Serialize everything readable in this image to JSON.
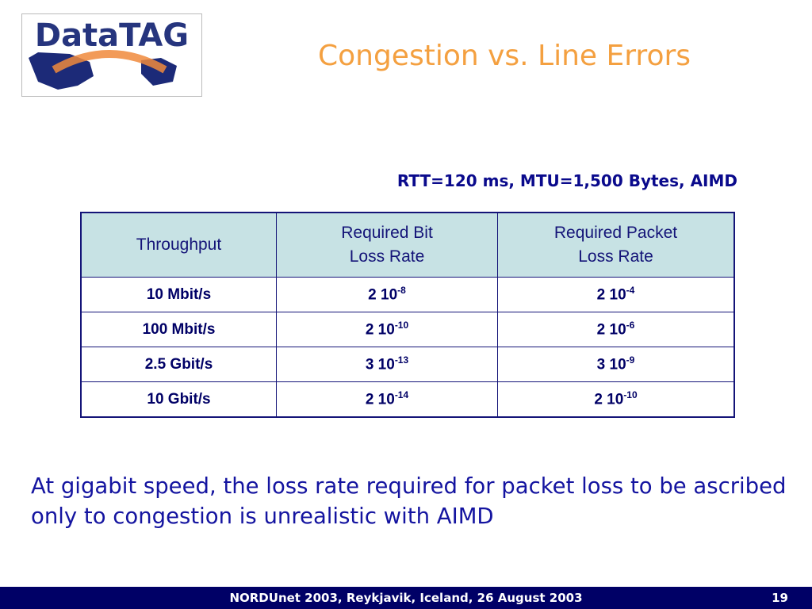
{
  "logo": {
    "text": "DataTAG"
  },
  "header": {
    "title": "Congestion vs. Line Errors"
  },
  "subtitle": "RTT=120 ms, MTU=1,500 Bytes, AIMD",
  "table": {
    "columns": [
      [
        "Throughput"
      ],
      [
        "Required Bit",
        "Loss Rate"
      ],
      [
        "Required Packet",
        "Loss Rate"
      ]
    ],
    "rows": [
      [
        "10 Mbit/s",
        {
          "base": "2 10",
          "exp": "-8"
        },
        {
          "base": "2 10",
          "exp": "-4"
        }
      ],
      [
        "100 Mbit/s",
        {
          "base": "2 10",
          "exp": "-10"
        },
        {
          "base": "2 10",
          "exp": "-6"
        }
      ],
      [
        "2.5 Gbit/s",
        {
          "base": "3 10",
          "exp": "-13"
        },
        {
          "base": "3 10",
          "exp": "-9"
        }
      ],
      [
        "10 Gbit/s",
        {
          "base": "2 10",
          "exp": "-14"
        },
        {
          "base": "2 10",
          "exp": "-10"
        }
      ]
    ]
  },
  "body": "At gigabit speed, the loss rate required for packet loss to be ascribed only to congestion is unrealistic with AIMD",
  "footer": {
    "text": "NORDUnet 2003, Reykjavik, Iceland, 26 August 2003",
    "page": "19"
  }
}
